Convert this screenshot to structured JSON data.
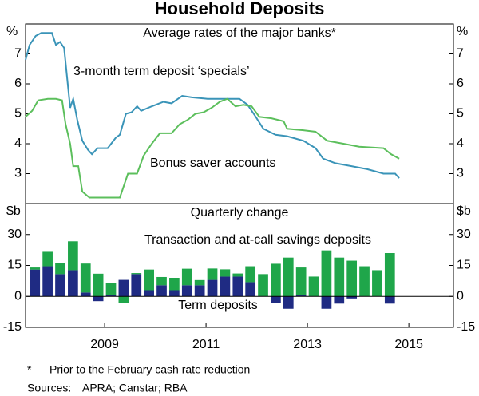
{
  "title": "Household Deposits",
  "chart_data": [
    {
      "type": "line",
      "title": "Average rates of the major banks*",
      "y_unit": "%",
      "xlim": [
        2007.94,
        2016.38
      ],
      "ylim": [
        2,
        8
      ],
      "yticks": [
        3,
        4,
        5,
        6,
        7
      ],
      "series": [
        {
          "name": "3-month term deposit ‘specials’",
          "color": "#3a94b8",
          "x": [
            2007.94,
            2008.02,
            2008.14,
            2008.25,
            2008.46,
            2008.54,
            2008.62,
            2008.7,
            2008.82,
            2008.88,
            2008.96,
            2009.06,
            2009.17,
            2009.25,
            2009.36,
            2009.56,
            2009.72,
            2009.8,
            2009.92,
            2010.03,
            2010.14,
            2010.22,
            2010.43,
            2010.66,
            2010.82,
            2011.03,
            2011.22,
            2011.53,
            2012.16,
            2012.32,
            2012.48,
            2012.63,
            2012.87,
            2013.1,
            2013.42,
            2013.66,
            2013.81,
            2014.05,
            2014.37,
            2014.68,
            2015.0,
            2015.23,
            2015.31
          ],
          "values": [
            6.8,
            7.3,
            7.6,
            7.7,
            7.7,
            7.3,
            7.4,
            7.2,
            5.2,
            5.5,
            4.8,
            4.1,
            3.8,
            3.65,
            3.85,
            3.85,
            4.2,
            4.3,
            5.0,
            5.05,
            5.25,
            5.1,
            5.25,
            5.4,
            5.35,
            5.6,
            5.55,
            5.5,
            5.5,
            5.3,
            4.9,
            4.5,
            4.3,
            4.25,
            4.1,
            3.85,
            3.5,
            3.35,
            3.25,
            3.15,
            3.0,
            3.0,
            2.85
          ]
        },
        {
          "name": "Bonus saver accounts",
          "color": "#5cbf5c",
          "x": [
            2007.94,
            2008.07,
            2008.19,
            2008.38,
            2008.54,
            2008.66,
            2008.73,
            2008.82,
            2008.88,
            2008.98,
            2009.06,
            2009.2,
            2009.8,
            2009.96,
            2010.14,
            2010.27,
            2010.43,
            2010.59,
            2010.82,
            2010.98,
            2011.14,
            2011.29,
            2011.45,
            2011.61,
            2011.77,
            2011.92,
            2012.08,
            2012.24,
            2012.4,
            2012.55,
            2012.79,
            2013.03,
            2013.1,
            2013.42,
            2013.66,
            2013.89,
            2014.21,
            2014.52,
            2015.0,
            2015.15,
            2015.31
          ],
          "values": [
            4.9,
            5.1,
            5.45,
            5.5,
            5.5,
            5.45,
            4.65,
            4.0,
            3.25,
            3.25,
            2.4,
            2.2,
            2.2,
            3.0,
            3.0,
            3.6,
            4.0,
            4.35,
            4.35,
            4.65,
            4.8,
            5.0,
            5.05,
            5.2,
            5.4,
            5.5,
            5.25,
            5.3,
            5.25,
            4.9,
            4.85,
            4.75,
            4.5,
            4.45,
            4.4,
            4.1,
            4.0,
            3.9,
            3.85,
            3.65,
            3.5
          ]
        }
      ]
    },
    {
      "type": "bar",
      "stacked": true,
      "title": "Quarterly change",
      "y_unit": "$b",
      "xlim": [
        2007.94,
        2016.38
      ],
      "ylim": [
        -15,
        45
      ],
      "yticks": [
        -15,
        0,
        15,
        30
      ],
      "xticks": [
        {
          "value": 2009.5,
          "label": "2009"
        },
        {
          "value": 2011.5,
          "label": "2011"
        },
        {
          "value": 2013.5,
          "label": "2013"
        },
        {
          "value": 2015.5,
          "label": "2015"
        }
      ],
      "x": [
        2008.125,
        2008.375,
        2008.625,
        2008.875,
        2009.125,
        2009.375,
        2009.625,
        2009.875,
        2010.125,
        2010.375,
        2010.625,
        2010.875,
        2011.125,
        2011.375,
        2011.625,
        2011.875,
        2012.125,
        2012.375,
        2012.625,
        2012.875,
        2013.125,
        2013.375,
        2013.625,
        2013.875,
        2014.125,
        2014.375,
        2014.625,
        2014.875,
        2015.125
      ],
      "series": [
        {
          "name": "Term deposits",
          "color": "#1f2b83",
          "values": [
            13,
            14.6,
            10.8,
            12.7,
            1.9,
            -2.3,
            0.5,
            8,
            10.8,
            3,
            5.4,
            3,
            5.4,
            5.4,
            8,
            9.6,
            9.6,
            6.9,
            0,
            -3,
            -6,
            0.5,
            0,
            -6,
            -3.5,
            -1,
            0,
            0,
            -3.5
          ]
        },
        {
          "name": "Transaction and at-call savings deposits",
          "color": "#1fa64a",
          "values": [
            1,
            7,
            5.4,
            14,
            14,
            11,
            6,
            -3,
            0.5,
            10,
            4,
            6,
            8,
            2.5,
            5.5,
            3.5,
            1.5,
            7.7,
            10.8,
            15.8,
            18.8,
            13.5,
            9.6,
            22.3,
            18.8,
            17.3,
            14.6,
            12.7,
            21
          ]
        }
      ]
    }
  ],
  "footnote": {
    "marker": "*",
    "text": "Prior to the February cash rate reduction"
  },
  "sources": {
    "label": "Sources:",
    "text": "APRA; Canstar; RBA"
  }
}
